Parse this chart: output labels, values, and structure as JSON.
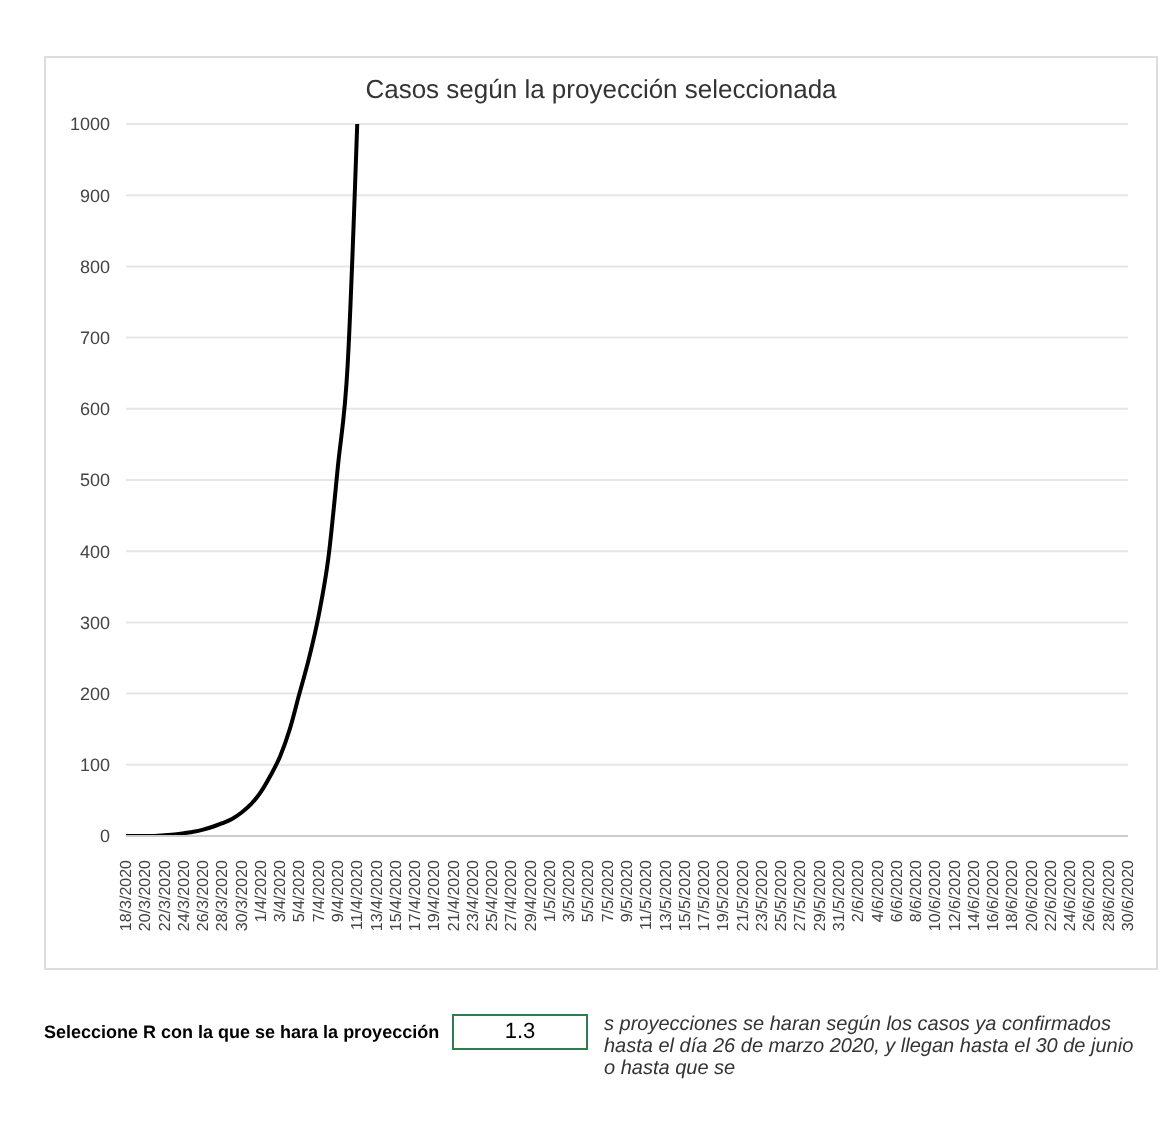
{
  "chart_data": {
    "type": "line",
    "title": "Casos según la proyección seleccionada",
    "categories": [
      "18/3/2020",
      null,
      "20/3/2020",
      null,
      "22/3/2020",
      null,
      "24/3/2020",
      null,
      "26/3/2020",
      null,
      "28/3/2020",
      null,
      "30/3/2020",
      null,
      "1/4/2020",
      null,
      "3/4/2020",
      null,
      "5/4/2020",
      null,
      "7/4/2020",
      null,
      "9/4/2020",
      null,
      "11/4/2020",
      null,
      "13/4/2020",
      null,
      "15/4/2020",
      null,
      "17/4/2020",
      null,
      "19/4/2020",
      null,
      "21/4/2020",
      null,
      "23/4/2020",
      null,
      "25/4/2020",
      null,
      "27/4/2020",
      null,
      "29/4/2020",
      null,
      "1/5/2020",
      null,
      "3/5/2020",
      null,
      "5/5/2020",
      null,
      "7/5/2020",
      null,
      "9/5/2020",
      null,
      "11/5/2020",
      null,
      "13/5/2020",
      null,
      "15/5/2020",
      null,
      "17/5/2020",
      null,
      "19/5/2020",
      null,
      "21/5/2020",
      null,
      "23/5/2020",
      null,
      "25/5/2020",
      null,
      "27/5/2020",
      null,
      "29/5/2020",
      null,
      "31/5/2020",
      null,
      "2/6/2020",
      null,
      "4/6/2020",
      null,
      "6/6/2020",
      null,
      "8/6/2020",
      null,
      "10/6/2020",
      null,
      "12/6/2020",
      null,
      "14/6/2020",
      null,
      "16/6/2020",
      null,
      "18/6/2020",
      null,
      "20/6/2020",
      null,
      "22/6/2020",
      null,
      "24/6/2020",
      null,
      "26/6/2020",
      null,
      "28/6/2020",
      null,
      "30/6/2020"
    ],
    "series": [
      {
        "color": "#000000",
        "values": [
          0,
          0,
          0,
          0,
          1,
          2,
          4,
          6,
          9,
          13,
          18,
          24,
          33,
          45,
          62,
          85,
          112,
          150,
          200,
          250,
          310,
          390,
          520,
          660,
          1000,
          null,
          null,
          null,
          null,
          null,
          null,
          null,
          null,
          null,
          null,
          null,
          null,
          null,
          null,
          null,
          null,
          null,
          null,
          null,
          null,
          null,
          null,
          null,
          null,
          null,
          null,
          null,
          null,
          null,
          null,
          null,
          null,
          null,
          null,
          null,
          null,
          null,
          null,
          null,
          null,
          null,
          null,
          null,
          null,
          null,
          null,
          null,
          null,
          null,
          null,
          null,
          null,
          null,
          null,
          null,
          null,
          null,
          null,
          null,
          null,
          null,
          null,
          null,
          null,
          null,
          null,
          null,
          null,
          null,
          null,
          null,
          null,
          null,
          null,
          null,
          null,
          null,
          null,
          null,
          null
        ]
      }
    ],
    "ylim": [
      0,
      1000
    ],
    "yticks": [
      0,
      100,
      200,
      300,
      400,
      500,
      600,
      700,
      800,
      900,
      1000
    ],
    "grid": "y",
    "marker": "none",
    "line_style": "solid",
    "annotations": [
      "Seleccione R con la que se hara la proyección",
      "1.3",
      "s proyecciones se haran según los casos ya confirmados hasta el día 26 de marzo 2020, y llegan hasta el 30 de junio o hasta que se"
    ]
  }
}
